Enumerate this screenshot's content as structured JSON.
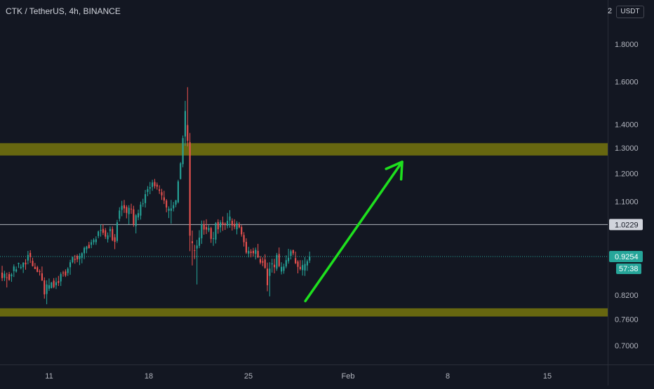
{
  "header": {
    "symbol_title": "CTK / TetherUS, 4h, BINANCE",
    "currency_badge": "USDT",
    "corner_value": "2"
  },
  "colors": {
    "background": "#131722",
    "candle_up": "#26a69a",
    "candle_down": "#ef5350",
    "zone_fill": "#6b6b10",
    "arrow": "#1ee01e",
    "resistance_line": "#9ea2aa",
    "current_price": "#26a69a",
    "axis_text": "#b2b5be"
  },
  "chart_data": {
    "type": "candlestick",
    "title": "CTK / TetherUS, 4h, BINANCE",
    "y_scale": "log",
    "ylim": [
      0.66,
      2.0
    ],
    "y_ticks": [
      "1.8000",
      "1.6000",
      "1.4000",
      "1.3000",
      "1.2000",
      "1.1000",
      "0.8200",
      "0.7600",
      "0.7000"
    ],
    "x_ticks": [
      "11",
      "18",
      "25",
      "Feb",
      "8",
      "15"
    ],
    "x_tick_days": [
      11,
      18,
      25,
      32,
      39,
      46
    ],
    "xlim_days": [
      7.7,
      49
    ],
    "candles_day_range": [
      7.7,
      29.3
    ],
    "candles": [
      {
        "o": 0.88,
        "h": 0.899,
        "l": 0.857,
        "c": 0.865
      },
      {
        "o": 0.866,
        "h": 0.885,
        "l": 0.857,
        "c": 0.877
      },
      {
        "o": 0.867,
        "h": 0.88,
        "l": 0.84,
        "c": 0.866
      },
      {
        "o": 0.876,
        "h": 0.882,
        "l": 0.858,
        "c": 0.86
      },
      {
        "o": 0.87,
        "h": 0.879,
        "l": 0.855,
        "c": 0.875
      },
      {
        "o": 0.884,
        "h": 0.903,
        "l": 0.868,
        "c": 0.897
      },
      {
        "o": 0.883,
        "h": 0.897,
        "l": 0.88,
        "c": 0.889
      },
      {
        "o": 0.904,
        "h": 0.908,
        "l": 0.893,
        "c": 0.907
      },
      {
        "o": 0.893,
        "h": 0.903,
        "l": 0.889,
        "c": 0.896
      },
      {
        "o": 0.895,
        "h": 0.909,
        "l": 0.879,
        "c": 0.908
      },
      {
        "o": 0.908,
        "h": 0.918,
        "l": 0.888,
        "c": 0.903
      },
      {
        "o": 0.914,
        "h": 0.942,
        "l": 0.903,
        "c": 0.93
      },
      {
        "o": 0.936,
        "h": 0.944,
        "l": 0.907,
        "c": 0.924
      },
      {
        "o": 0.913,
        "h": 0.922,
        "l": 0.897,
        "c": 0.898
      },
      {
        "o": 0.896,
        "h": 0.907,
        "l": 0.89,
        "c": 0.89
      },
      {
        "o": 0.895,
        "h": 0.899,
        "l": 0.881,
        "c": 0.882
      },
      {
        "o": 0.884,
        "h": 0.889,
        "l": 0.872,
        "c": 0.882
      },
      {
        "o": 0.878,
        "h": 0.897,
        "l": 0.857,
        "c": 0.859
      },
      {
        "o": 0.859,
        "h": 0.867,
        "l": 0.811,
        "c": 0.822
      },
      {
        "o": 0.823,
        "h": 0.859,
        "l": 0.797,
        "c": 0.848
      },
      {
        "o": 0.837,
        "h": 0.864,
        "l": 0.831,
        "c": 0.846
      },
      {
        "o": 0.838,
        "h": 0.855,
        "l": 0.838,
        "c": 0.853
      },
      {
        "o": 0.858,
        "h": 0.865,
        "l": 0.838,
        "c": 0.841
      },
      {
        "o": 0.846,
        "h": 0.866,
        "l": 0.836,
        "c": 0.854
      },
      {
        "o": 0.857,
        "h": 0.871,
        "l": 0.844,
        "c": 0.852
      },
      {
        "o": 0.856,
        "h": 0.881,
        "l": 0.844,
        "c": 0.876
      },
      {
        "o": 0.88,
        "h": 0.885,
        "l": 0.869,
        "c": 0.879
      },
      {
        "o": 0.883,
        "h": 0.889,
        "l": 0.868,
        "c": 0.872
      },
      {
        "o": 0.879,
        "h": 0.895,
        "l": 0.871,
        "c": 0.891
      },
      {
        "o": 0.895,
        "h": 0.916,
        "l": 0.874,
        "c": 0.909
      },
      {
        "o": 0.909,
        "h": 0.925,
        "l": 0.906,
        "c": 0.924
      },
      {
        "o": 0.919,
        "h": 0.93,
        "l": 0.905,
        "c": 0.916
      },
      {
        "o": 0.927,
        "h": 0.932,
        "l": 0.909,
        "c": 0.917
      },
      {
        "o": 0.918,
        "h": 0.935,
        "l": 0.901,
        "c": 0.927
      },
      {
        "o": 0.922,
        "h": 0.938,
        "l": 0.906,
        "c": 0.935
      },
      {
        "o": 0.935,
        "h": 0.955,
        "l": 0.918,
        "c": 0.951
      },
      {
        "o": 0.947,
        "h": 0.957,
        "l": 0.935,
        "c": 0.955
      },
      {
        "o": 0.96,
        "h": 0.969,
        "l": 0.949,
        "c": 0.95
      },
      {
        "o": 0.96,
        "h": 0.976,
        "l": 0.95,
        "c": 0.968
      },
      {
        "o": 0.968,
        "h": 0.98,
        "l": 0.96,
        "c": 0.975
      },
      {
        "o": 0.968,
        "h": 0.986,
        "l": 0.96,
        "c": 0.977
      },
      {
        "o": 0.987,
        "h": 1.004,
        "l": 0.98,
        "c": 1.001
      },
      {
        "o": 1.003,
        "h": 1.023,
        "l": 0.985,
        "c": 1.006
      },
      {
        "o": 1.009,
        "h": 1.024,
        "l": 0.99,
        "c": 0.997
      },
      {
        "o": 1.005,
        "h": 1.012,
        "l": 0.978,
        "c": 0.985
      },
      {
        "o": 0.977,
        "h": 0.998,
        "l": 0.967,
        "c": 0.989
      },
      {
        "o": 1.002,
        "h": 1.017,
        "l": 0.983,
        "c": 1.009
      },
      {
        "o": 1.009,
        "h": 1.017,
        "l": 0.971,
        "c": 0.974
      },
      {
        "o": 0.983,
        "h": 0.993,
        "l": 0.947,
        "c": 0.969
      },
      {
        "o": 0.972,
        "h": 1.038,
        "l": 0.966,
        "c": 1.03
      },
      {
        "o": 1.042,
        "h": 1.08,
        "l": 1.033,
        "c": 1.069
      },
      {
        "o": 1.071,
        "h": 1.102,
        "l": 1.05,
        "c": 1.085
      },
      {
        "o": 1.087,
        "h": 1.105,
        "l": 1.061,
        "c": 1.076
      },
      {
        "o": 1.081,
        "h": 1.087,
        "l": 1.043,
        "c": 1.061
      },
      {
        "o": 1.057,
        "h": 1.087,
        "l": 1.024,
        "c": 1.078
      },
      {
        "o": 1.075,
        "h": 1.092,
        "l": 1.058,
        "c": 1.073
      },
      {
        "o": 1.073,
        "h": 1.085,
        "l": 1.016,
        "c": 1.024
      },
      {
        "o": 1.018,
        "h": 1.057,
        "l": 0.995,
        "c": 1.053
      },
      {
        "o": 1.046,
        "h": 1.072,
        "l": 1.037,
        "c": 1.06
      },
      {
        "o": 1.052,
        "h": 1.099,
        "l": 1.039,
        "c": 1.089
      },
      {
        "o": 1.093,
        "h": 1.109,
        "l": 1.081,
        "c": 1.093
      },
      {
        "o": 1.094,
        "h": 1.14,
        "l": 1.079,
        "c": 1.125
      },
      {
        "o": 1.133,
        "h": 1.154,
        "l": 1.118,
        "c": 1.143
      },
      {
        "o": 1.145,
        "h": 1.169,
        "l": 1.125,
        "c": 1.15
      },
      {
        "o": 1.151,
        "h": 1.177,
        "l": 1.137,
        "c": 1.167
      },
      {
        "o": 1.169,
        "h": 1.18,
        "l": 1.145,
        "c": 1.154
      },
      {
        "o": 1.159,
        "h": 1.167,
        "l": 1.141,
        "c": 1.152
      },
      {
        "o": 1.142,
        "h": 1.157,
        "l": 1.126,
        "c": 1.137
      },
      {
        "o": 1.132,
        "h": 1.144,
        "l": 1.105,
        "c": 1.121
      },
      {
        "o": 1.114,
        "h": 1.137,
        "l": 1.091,
        "c": 1.103
      },
      {
        "o": 1.103,
        "h": 1.108,
        "l": 1.063,
        "c": 1.079
      },
      {
        "o": 1.068,
        "h": 1.083,
        "l": 1.044,
        "c": 1.075
      },
      {
        "o": 1.068,
        "h": 1.105,
        "l": 1.026,
        "c": 1.076
      },
      {
        "o": 1.076,
        "h": 1.098,
        "l": 1.066,
        "c": 1.087
      },
      {
        "o": 1.089,
        "h": 1.105,
        "l": 1.08,
        "c": 1.104
      },
      {
        "o": 1.097,
        "h": 1.177,
        "l": 1.093,
        "c": 1.171
      },
      {
        "o": 1.18,
        "h": 1.244,
        "l": 1.178,
        "c": 1.239
      },
      {
        "o": 1.236,
        "h": 1.352,
        "l": 1.224,
        "c": 1.341
      },
      {
        "o": 1.348,
        "h": 1.507,
        "l": 1.309,
        "c": 1.46
      },
      {
        "o": 1.397,
        "h": 1.573,
        "l": 1.307,
        "c": 1.33
      },
      {
        "o": 1.324,
        "h": 1.363,
        "l": 0.941,
        "c": 0.988
      },
      {
        "o": 0.971,
        "h": 1.004,
        "l": 0.9,
        "c": 0.965
      },
      {
        "o": 0.944,
        "h": 0.96,
        "l": 0.918,
        "c": 0.943
      },
      {
        "o": 0.949,
        "h": 0.975,
        "l": 0.848,
        "c": 0.958
      },
      {
        "o": 0.957,
        "h": 1.005,
        "l": 0.95,
        "c": 0.982
      },
      {
        "o": 0.98,
        "h": 1.036,
        "l": 0.963,
        "c": 1.024
      },
      {
        "o": 1.024,
        "h": 1.036,
        "l": 0.991,
        "c": 1.007
      },
      {
        "o": 1.015,
        "h": 1.04,
        "l": 0.993,
        "c": 1.007
      },
      {
        "o": 1.005,
        "h": 1.021,
        "l": 0.999,
        "c": 1.012
      },
      {
        "o": 1.012,
        "h": 1.016,
        "l": 0.966,
        "c": 0.978
      },
      {
        "o": 0.978,
        "h": 1.0,
        "l": 0.957,
        "c": 0.98
      },
      {
        "o": 0.976,
        "h": 1.031,
        "l": 0.964,
        "c": 1.028
      },
      {
        "o": 1.031,
        "h": 1.04,
        "l": 0.994,
        "c": 1.008
      },
      {
        "o": 1.014,
        "h": 1.037,
        "l": 0.998,
        "c": 1.03
      },
      {
        "o": 1.03,
        "h": 1.049,
        "l": 1.003,
        "c": 1.024
      },
      {
        "o": 1.026,
        "h": 1.03,
        "l": 1.006,
        "c": 1.022
      },
      {
        "o": 1.019,
        "h": 1.061,
        "l": 1.011,
        "c": 1.035
      },
      {
        "o": 1.036,
        "h": 1.07,
        "l": 1.013,
        "c": 1.049
      },
      {
        "o": 1.035,
        "h": 1.043,
        "l": 1.004,
        "c": 1.02
      },
      {
        "o": 1.025,
        "h": 1.04,
        "l": 1.008,
        "c": 1.016
      },
      {
        "o": 1.008,
        "h": 1.034,
        "l": 0.992,
        "c": 1.027
      },
      {
        "o": 1.025,
        "h": 1.031,
        "l": 1.011,
        "c": 1.014
      },
      {
        "o": 1.015,
        "h": 1.021,
        "l": 0.985,
        "c": 0.992
      },
      {
        "o": 0.99,
        "h": 0.999,
        "l": 0.955,
        "c": 0.968
      },
      {
        "o": 0.969,
        "h": 0.98,
        "l": 0.933,
        "c": 0.937
      },
      {
        "o": 0.934,
        "h": 0.954,
        "l": 0.923,
        "c": 0.942
      },
      {
        "o": 0.94,
        "h": 0.947,
        "l": 0.923,
        "c": 0.936
      },
      {
        "o": 0.942,
        "h": 0.951,
        "l": 0.926,
        "c": 0.935
      },
      {
        "o": 0.933,
        "h": 0.952,
        "l": 0.917,
        "c": 0.945
      },
      {
        "o": 0.942,
        "h": 0.963,
        "l": 0.921,
        "c": 0.923
      },
      {
        "o": 0.918,
        "h": 0.927,
        "l": 0.903,
        "c": 0.908
      },
      {
        "o": 0.912,
        "h": 0.923,
        "l": 0.898,
        "c": 0.908
      },
      {
        "o": 0.917,
        "h": 0.932,
        "l": 0.891,
        "c": 0.893
      },
      {
        "o": 0.891,
        "h": 0.908,
        "l": 0.83,
        "c": 0.846
      },
      {
        "o": 0.871,
        "h": 0.909,
        "l": 0.817,
        "c": 0.891
      },
      {
        "o": 0.903,
        "h": 0.919,
        "l": 0.88,
        "c": 0.906
      },
      {
        "o": 0.902,
        "h": 0.919,
        "l": 0.878,
        "c": 0.895
      },
      {
        "o": 0.891,
        "h": 0.936,
        "l": 0.885,
        "c": 0.93
      },
      {
        "o": 0.933,
        "h": 0.952,
        "l": 0.895,
        "c": 0.898
      },
      {
        "o": 0.883,
        "h": 0.909,
        "l": 0.875,
        "c": 0.896
      },
      {
        "o": 0.885,
        "h": 0.905,
        "l": 0.877,
        "c": 0.897
      },
      {
        "o": 0.897,
        "h": 0.929,
        "l": 0.892,
        "c": 0.915
      },
      {
        "o": 0.912,
        "h": 0.948,
        "l": 0.905,
        "c": 0.922
      },
      {
        "o": 0.927,
        "h": 0.946,
        "l": 0.917,
        "c": 0.941
      },
      {
        "o": 0.944,
        "h": 0.946,
        "l": 0.929,
        "c": 0.935
      },
      {
        "o": 0.921,
        "h": 0.94,
        "l": 0.904,
        "c": 0.906
      },
      {
        "o": 0.911,
        "h": 0.915,
        "l": 0.878,
        "c": 0.896
      },
      {
        "o": 0.896,
        "h": 0.915,
        "l": 0.886,
        "c": 0.89
      },
      {
        "o": 0.887,
        "h": 0.915,
        "l": 0.872,
        "c": 0.901
      },
      {
        "o": 0.886,
        "h": 0.924,
        "l": 0.871,
        "c": 0.904
      },
      {
        "o": 0.9,
        "h": 0.917,
        "l": 0.885,
        "c": 0.912
      },
      {
        "o": 0.914,
        "h": 0.94,
        "l": 0.907,
        "c": 0.9254
      }
    ],
    "zones": [
      {
        "name": "resistance-zone",
        "low": 1.27,
        "high": 1.32
      },
      {
        "name": "support-zone",
        "low": 0.767,
        "high": 0.787
      }
    ],
    "horizontal_line": {
      "value": 1.0229,
      "label": "1.0229"
    },
    "current_price": {
      "value": 0.9254,
      "label": "0.9254",
      "countdown": "57:38"
    },
    "arrow": {
      "from": {
        "day": 29.0,
        "price": 0.805
      },
      "to": {
        "day": 35.8,
        "price": 1.245
      }
    }
  }
}
